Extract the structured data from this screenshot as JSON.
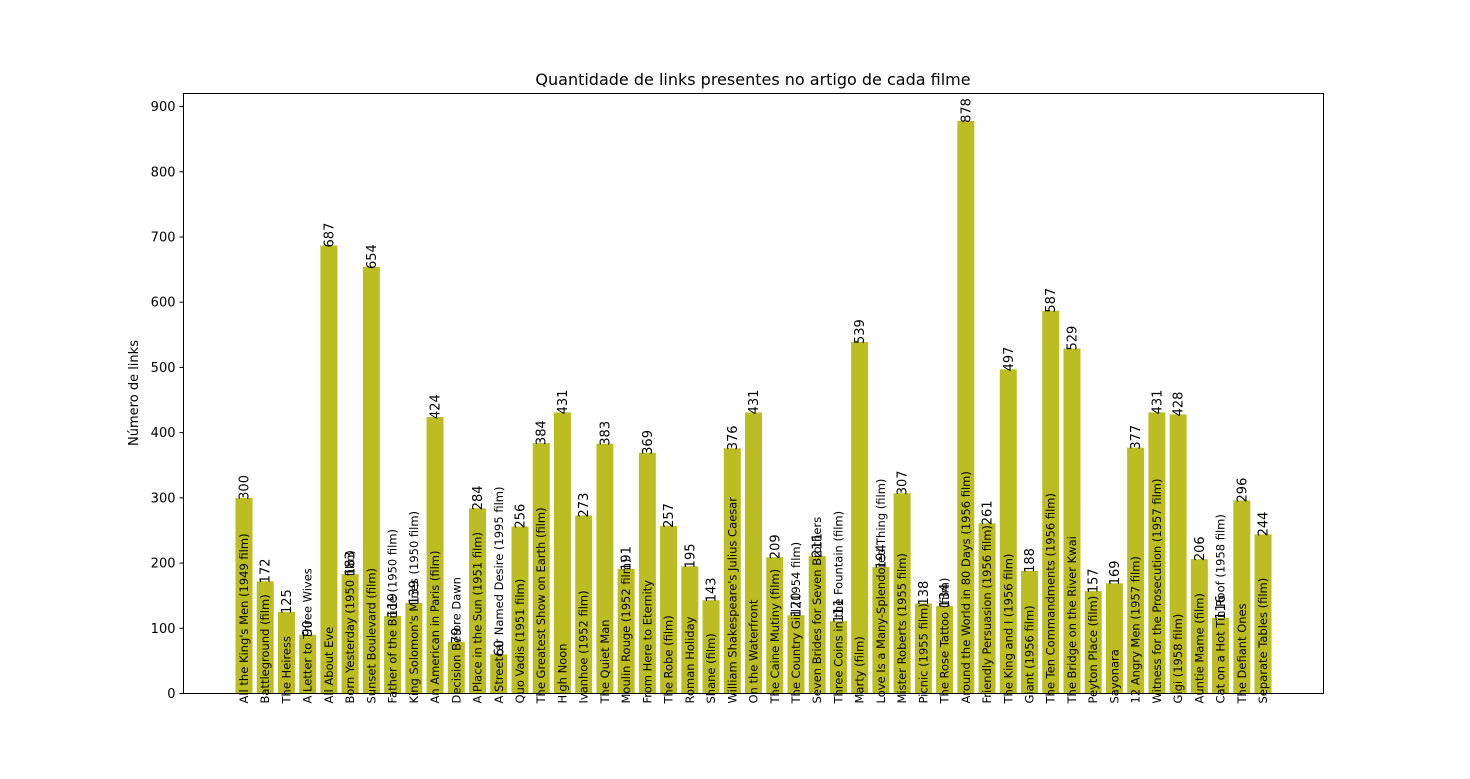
{
  "chart_data": {
    "type": "bar",
    "title": "Quantidade de links presentes no artigo de cada filme",
    "xlabel": "",
    "ylabel": "Número de links",
    "ylim": [
      0,
      920
    ],
    "yticks": [
      0,
      100,
      200,
      300,
      400,
      500,
      600,
      700,
      800,
      900
    ],
    "bar_color": "#bcbd22",
    "categories": [
      "All the King's Men (1949 film)",
      "Battleground (film)",
      "The Heiress",
      "A Letter to Three Wives",
      "All About Eve",
      "Born Yesterday (1950 film)",
      "Sunset Boulevard (film)",
      "Father of the Bride (1950 film)",
      "King Solomon's Mines (1950 film)",
      "An American in Paris (film)",
      "Decision Before Dawn",
      "A Place in the Sun (1951 film)",
      "A Streetcar Named Desire (1995 film)",
      "Quo Vadis (1951 film)",
      "The Greatest Show on Earth (film)",
      "High Noon",
      "Ivanhoe (1952 film)",
      "The Quiet Man",
      "Moulin Rouge (1952 film)",
      "From Here to Eternity",
      "The Robe (film)",
      "Roman Holiday",
      "Shane (film)",
      "William Shakespeare's Julius Caesar",
      "On the Waterfront",
      "The Caine Mutiny (film)",
      "The Country Girl (1954 film)",
      "Seven Brides for Seven Brothers",
      "Three Coins in the Fountain (film)",
      "Marty (film)",
      "Love Is a Many-Splendored Thing (film)",
      "Mister Roberts (1955 film)",
      "Picnic (1955 film)",
      "The Rose Tattoo (film)",
      "Around the World in 80 Days (1956 film)",
      "Friendly Persuasion (1956 film)",
      "The King and I (1956 film)",
      "Giant (1956 film)",
      "The Ten Commandments (1956 film)",
      "The Bridge on the River Kwai",
      "Peyton Place (film)",
      "Sayonara",
      "12 Angry Men (1957 film)",
      "Witness for the Prosecution (1957 film)",
      "Gigi (1958 film)",
      "Auntie Mame (film)",
      "Cat on a Hot Tin Roof (1958 film)",
      "The Defiant Ones",
      "Separate Tables (film)"
    ],
    "values": [
      300,
      172,
      125,
      90,
      687,
      183,
      654,
      119,
      139,
      424,
      79,
      284,
      60,
      256,
      384,
      431,
      273,
      383,
      191,
      369,
      257,
      195,
      143,
      376,
      431,
      209,
      120,
      211,
      111,
      539,
      194,
      307,
      138,
      134,
      878,
      261,
      497,
      188,
      587,
      529,
      157,
      169,
      377,
      431,
      428,
      206,
      116,
      296,
      244
    ]
  }
}
